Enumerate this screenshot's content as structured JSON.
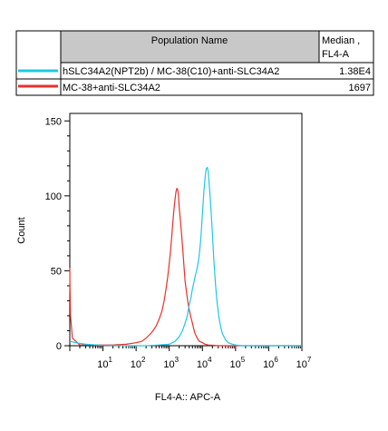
{
  "legend_table": {
    "header": {
      "population": "Population Name",
      "median_line1": "Median ,",
      "median_line2": "FL4-A"
    },
    "rows": [
      {
        "name": "hSLC34A2(NPT2b) / MC-38(C10)+anti-SLC34A2",
        "median": "1.38E4",
        "color": "#1ec8e6"
      },
      {
        "name": "MC-38+anti-SLC34A2",
        "median": "1697",
        "color": "#e8302a"
      }
    ],
    "header_bg": "#c8c8c8"
  },
  "chart_data": {
    "type": "line",
    "xlabel": "FL4-A:: APC-A",
    "ylabel": "Count",
    "x_scale": "log",
    "xlim": [
      1,
      10000000
    ],
    "ylim": [
      0,
      155
    ],
    "x_ticks": [
      {
        "base": "10",
        "exp": "1"
      },
      {
        "base": "10",
        "exp": "2"
      },
      {
        "base": "10",
        "exp": "3"
      },
      {
        "base": "10",
        "exp": "4"
      },
      {
        "base": "10",
        "exp": "5"
      },
      {
        "base": "10",
        "exp": "6"
      },
      {
        "base": "10",
        "exp": "7"
      }
    ],
    "y_ticks": [
      "0",
      "50",
      "100",
      "150"
    ],
    "series": [
      {
        "name": "MC-38+anti-SLC34A2",
        "color": "#e8302a",
        "x": [
          1,
          1.01,
          1.05,
          1.2,
          2,
          5,
          20,
          50,
          100,
          150,
          200,
          300,
          400,
          500,
          600,
          700,
          800,
          900,
          1000,
          1100,
          1200,
          1300,
          1400,
          1500,
          1600,
          1700,
          1800,
          1900,
          2000,
          2200,
          2400,
          2600,
          2800,
          3000,
          3300,
          3600,
          4000,
          4500,
          5000,
          5500,
          6000,
          7000,
          8000,
          10000,
          12000,
          15000,
          20000,
          30000,
          60000,
          100000,
          1000000,
          10000000
        ],
        "y": [
          52,
          40,
          20,
          5,
          0.5,
          0.5,
          0.5,
          1,
          2,
          3,
          5,
          9,
          13,
          18,
          23,
          30,
          38,
          46,
          55,
          64,
          74,
          84,
          92,
          98,
          103,
          105,
          104,
          100,
          92,
          82,
          72,
          62,
          52,
          43,
          36,
          30,
          24,
          19,
          15,
          11,
          8,
          5,
          3,
          2,
          1,
          0.5,
          0.3,
          0,
          0,
          0,
          0,
          0
        ]
      },
      {
        "name": "hSLC34A2(NPT2b) / MC-38(C10)+anti-SLC34A2",
        "color": "#1ec8e6",
        "x": [
          1,
          1.5,
          3,
          10,
          100,
          200,
          500,
          1000,
          1500,
          2000,
          2500,
          3000,
          3500,
          4000,
          4500,
          5000,
          5500,
          6000,
          7000,
          8000,
          9000,
          10000,
          11000,
          12000,
          13000,
          14000,
          15000,
          16000,
          18000,
          20000,
          22000,
          25000,
          28000,
          32000,
          36000,
          40000,
          50000,
          60000,
          80000,
          100000,
          150000,
          1000000,
          10000000
        ],
        "y": [
          3,
          2,
          1,
          0.2,
          0,
          0,
          0.5,
          1,
          3,
          6,
          10,
          15,
          20,
          27,
          32,
          38,
          42,
          46,
          52,
          60,
          72,
          88,
          102,
          112,
          118,
          119,
          116,
          108,
          92,
          75,
          58,
          40,
          28,
          18,
          12,
          8,
          4,
          2,
          1,
          0.5,
          0,
          0,
          0
        ]
      }
    ]
  }
}
